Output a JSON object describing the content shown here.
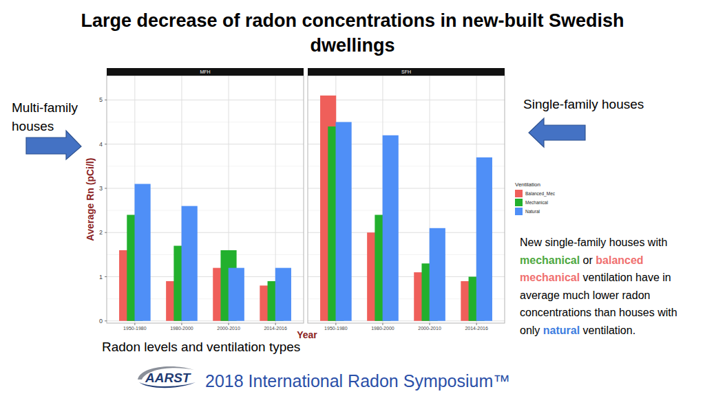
{
  "page": {
    "title": "Large decrease of radon concentrations in new-built Swedish dwellings",
    "y_label": "Average Rn (pCi/l)",
    "x_label": "Year",
    "left_label": "Multi-family houses",
    "right_label": "Single-family houses",
    "caption": "Radon levels and ventilation types",
    "note": [
      {
        "text": "New single-family houses with "
      },
      {
        "text": "mechanical",
        "color": "#4ea83f"
      },
      {
        "text": " or "
      },
      {
        "text": "balanced mechanical",
        "color": "#f07070"
      },
      {
        "text": " ventilation have in average much lower radon concentrations than houses with only "
      },
      {
        "text": "natural",
        "color": "#3d7de0"
      },
      {
        "text": " ventilation."
      }
    ],
    "logo": "AARST",
    "footer": "2018 International Radon Symposium™"
  },
  "chart_data": [
    {
      "type": "bar",
      "title": "MFH",
      "categories": [
        "1950-1980",
        "1980-2000",
        "2000-2010",
        "2014-2016"
      ],
      "series": [
        {
          "color": "#ef5f5a",
          "values": [
            1.6,
            0.9,
            1.2,
            0.8
          ]
        },
        {
          "color": "#22b02d",
          "values": [
            2.4,
            1.7,
            1.6,
            0.9
          ]
        },
        {
          "color": "#4f8ff7",
          "values": [
            3.1,
            2.6,
            1.2,
            1.2
          ]
        }
      ],
      "ylim": [
        -0.05,
        5.55
      ],
      "yticks": [
        0,
        1,
        2,
        3,
        4,
        5
      ],
      "grid": true
    },
    {
      "type": "bar",
      "title": "SFH",
      "categories": [
        "1950-1980",
        "1980-2000",
        "2000-2010",
        "2014-2016"
      ],
      "series": [
        {
          "name": "Balanced_Mec",
          "color": "#ef5f5a",
          "values": [
            5.1,
            2.0,
            1.1,
            0.9
          ]
        },
        {
          "name": "Mechanical",
          "color": "#22b02d",
          "values": [
            4.4,
            2.4,
            1.3,
            1.0
          ]
        },
        {
          "name": "Natural",
          "color": "#4f8ff7",
          "values": [
            4.5,
            4.2,
            2.1,
            3.7
          ]
        }
      ],
      "ylim": [
        -0.05,
        5.55
      ],
      "yticks": [
        0,
        1,
        2,
        3,
        4,
        5
      ],
      "grid": true,
      "tick_labels": "x",
      "legend": "right",
      "legend_title": "Ventilation"
    }
  ]
}
